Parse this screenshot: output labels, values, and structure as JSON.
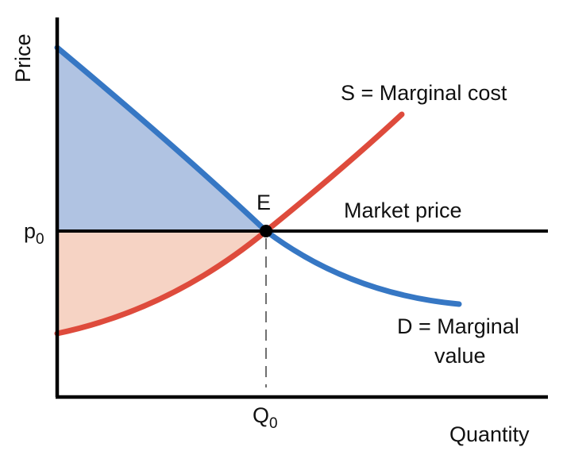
{
  "chart_data": {
    "type": "supply-demand diagram",
    "title": "",
    "axes": {
      "x_label": "Quantity",
      "y_label": "Price",
      "x_tick": {
        "base": "Q",
        "subscript": "0"
      },
      "y_tick": {
        "base": "p",
        "subscript": "0"
      }
    },
    "equilibrium": {
      "label": "E",
      "x": 0,
      "y": 0
    },
    "market_price": {
      "label": "Market price",
      "y": 0
    },
    "curves": [
      {
        "name": "supply",
        "label": "S = Marginal cost",
        "color": "#de4b3c",
        "kind": "increasing convex"
      },
      {
        "name": "demand",
        "label_lines": [
          "D = Marginal",
          "value"
        ],
        "color": "#3677c4",
        "kind": "decreasing convex"
      }
    ],
    "regions": [
      {
        "name": "consumer-surplus",
        "color": "#b0c3e2",
        "between": [
          "demand",
          "market price"
        ]
      },
      {
        "name": "producer-surplus",
        "color": "#f6d3c4",
        "between": [
          "market price",
          "supply"
        ]
      }
    ]
  }
}
